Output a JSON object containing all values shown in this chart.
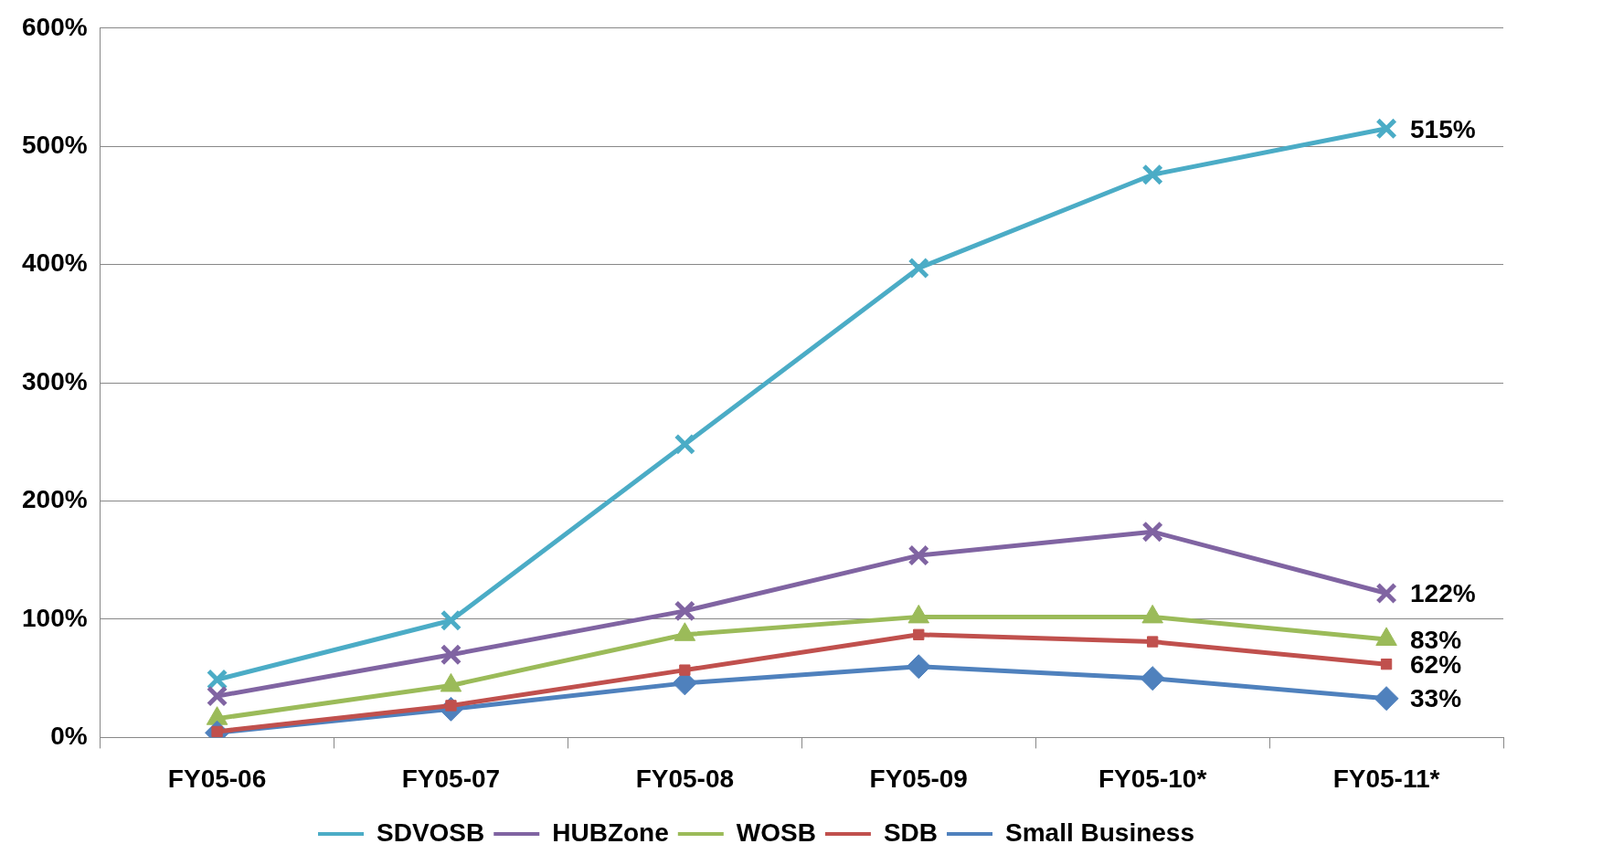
{
  "chart_data": {
    "type": "line",
    "categories": [
      "FY05-06",
      "FY05-07",
      "FY05-08",
      "FY05-09",
      "FY05-10*",
      "FY05-11*"
    ],
    "ylim": [
      0,
      600
    ],
    "yticks": [
      {
        "value": 0,
        "label": "0%"
      },
      {
        "value": 100,
        "label": "100%"
      },
      {
        "value": 200,
        "label": "200%"
      },
      {
        "value": 300,
        "label": "300%"
      },
      {
        "value": 400,
        "label": "400%"
      },
      {
        "value": 500,
        "label": "500%"
      },
      {
        "value": 600,
        "label": "600%"
      }
    ],
    "grid": "y",
    "legend": "bottom",
    "series": [
      {
        "name": "SDVOSB",
        "color": "#4bacc6",
        "marker": "cross",
        "values": [
          49,
          99,
          248,
          397,
          476,
          515
        ],
        "value_labels": [
          null,
          null,
          null,
          null,
          null,
          "515%"
        ]
      },
      {
        "name": "HUBZone",
        "color": "#8064a2",
        "marker": "cross",
        "values": [
          35,
          70,
          107,
          154,
          174,
          122
        ],
        "value_labels": [
          null,
          null,
          null,
          null,
          null,
          "122%"
        ]
      },
      {
        "name": "WOSB",
        "color": "#9bbb59",
        "marker": "triangle",
        "values": [
          16,
          44,
          87,
          102,
          102,
          83
        ],
        "value_labels": [
          null,
          null,
          null,
          null,
          null,
          "83%"
        ]
      },
      {
        "name": "SDB",
        "color": "#c0504d",
        "marker": "square",
        "values": [
          5,
          27,
          57,
          87,
          81,
          62
        ],
        "value_labels": [
          null,
          null,
          null,
          null,
          null,
          "62%"
        ]
      },
      {
        "name": "Small Business",
        "color": "#4f81bd",
        "marker": "diamond",
        "values": [
          4,
          24,
          46,
          60,
          50,
          33
        ],
        "value_labels": [
          null,
          null,
          null,
          null,
          null,
          "33%"
        ]
      }
    ]
  }
}
